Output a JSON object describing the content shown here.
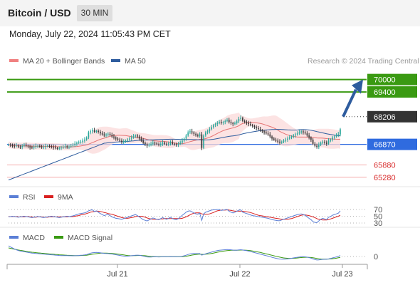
{
  "header": {
    "pair": "Bitcoin / USD",
    "timeframe": "30 MIN"
  },
  "datetime": "Monday, July 22, 2024 11:05:43 PM CET",
  "legend": {
    "ma20": "MA 20 + Bollinger Bands",
    "ma50": "MA 50",
    "rsi": "RSI",
    "rsi_ma": "9MA",
    "macd": "MACD",
    "macd_signal": "MACD Signal"
  },
  "copyright": "Research © 2024 Trading Central",
  "colors": {
    "bull": "#26a69a",
    "bear": "#333333",
    "ma20": "#e57373",
    "ma50": "#2e5c9e",
    "target": "#3a9a12",
    "pivot": "#2f6bdf",
    "support": "#d93030",
    "current": "#333333",
    "rsi": "#5b7fd6",
    "rsi_ma": "#d92020",
    "macd": "#5b7fd6",
    "signal": "#3a9a12"
  },
  "chart_data": {
    "type": "candlestick",
    "x_ticks": [
      "Jul 21",
      "Jul 22",
      "Jul 23"
    ],
    "y_range": [
      65000,
      70400
    ],
    "levels": [
      {
        "label": "70000",
        "value": 70000,
        "kind": "resistance"
      },
      {
        "label": "69400",
        "value": 69400,
        "kind": "resistance"
      },
      {
        "label": "68206",
        "value": 68206,
        "kind": "current"
      },
      {
        "label": "66870",
        "value": 66870,
        "kind": "pivot"
      },
      {
        "label": "65880",
        "value": 65880,
        "kind": "support"
      },
      {
        "label": "65280",
        "value": 65280,
        "kind": "support"
      }
    ],
    "closes": [
      66850,
      66820,
      66800,
      66780,
      66810,
      66760,
      66740,
      66790,
      66830,
      66800,
      66770,
      66720,
      66700,
      66750,
      66790,
      66800,
      66760,
      66730,
      66740,
      66780,
      66800,
      66770,
      66760,
      66720,
      66690,
      66680,
      66700,
      66710,
      66740,
      66780,
      66750,
      66760,
      66800,
      66830,
      66900,
      66950,
      66980,
      67000,
      67050,
      67100,
      67200,
      67450,
      67500,
      67550,
      67480,
      67520,
      67480,
      67400,
      67350,
      67300,
      67350,
      67380,
      67330,
      67250,
      67200,
      67150,
      67100,
      67050,
      66980,
      67000,
      67050,
      67100,
      67150,
      67200,
      67250,
      67300,
      67250,
      67150,
      67050,
      66950,
      66880,
      66800,
      66850,
      66900,
      66950,
      66920,
      66880,
      66850,
      66900,
      66950,
      66900,
      66870,
      66920,
      66960,
      66900,
      66880,
      66850,
      66900,
      66950,
      67050,
      67150,
      67300,
      67450,
      67500,
      67450,
      67380,
      67300,
      67280,
      67350,
      66700,
      67300,
      67450,
      67500,
      67600,
      67700,
      67800,
      67850,
      67900,
      67950,
      67900,
      67950,
      68000,
      68050,
      67950,
      67900,
      67850,
      67900,
      67980,
      68100,
      68150,
      68000,
      67950,
      67900,
      67850,
      67800,
      67750,
      67700,
      67650,
      67600,
      67550,
      67500,
      67450,
      67400,
      67350,
      67250,
      67150,
      67100,
      67050,
      67000,
      66950,
      67000,
      67050,
      67100,
      67150,
      67200,
      67250,
      67300,
      67350,
      67400,
      67450,
      67500,
      67450,
      67400,
      67300,
      67200,
      67100,
      66900,
      66800,
      66750,
      66850,
      66950,
      67000,
      66950,
      66900,
      67050,
      67100,
      67200,
      67250,
      67300,
      67350,
      67600
    ],
    "last_price": 68206,
    "forecast": {
      "from": 68206,
      "to": 70000
    },
    "rsi_levels": [
      70,
      50,
      30
    ],
    "rsi": [
      48,
      49,
      50,
      49,
      48,
      47,
      48,
      49,
      50,
      49,
      48,
      47,
      46,
      47,
      48,
      49,
      48,
      47,
      46,
      47,
      48,
      49,
      50,
      49,
      48,
      47,
      46,
      47,
      48,
      49,
      50,
      49,
      50,
      51,
      53,
      55,
      57,
      58,
      59,
      60,
      62,
      66,
      68,
      69,
      64,
      66,
      62,
      58,
      55,
      52,
      54,
      55,
      52,
      48,
      46,
      44,
      43,
      42,
      41,
      43,
      45,
      47,
      49,
      51,
      53,
      55,
      52,
      48,
      44,
      40,
      38,
      36,
      39,
      42,
      45,
      43,
      41,
      40,
      43,
      46,
      43,
      41,
      44,
      47,
      43,
      41,
      40,
      43,
      47,
      53,
      57,
      62,
      65,
      66,
      63,
      60,
      57,
      56,
      59,
      38,
      57,
      62,
      64,
      66,
      68,
      69,
      69,
      70,
      70,
      67,
      68,
      69,
      70,
      65,
      62,
      60,
      62,
      65,
      68,
      69,
      62,
      60,
      58,
      56,
      54,
      52,
      51,
      50,
      49,
      48,
      47,
      46,
      45,
      44,
      42,
      40,
      39,
      38,
      37,
      37,
      39,
      41,
      43,
      45,
      47,
      49,
      51,
      53,
      55,
      56,
      57,
      55,
      53,
      48,
      44,
      40,
      34,
      32,
      31,
      36,
      41,
      44,
      42,
      40,
      47,
      49,
      53,
      55,
      57,
      59,
      66
    ],
    "rsi_ma": [
      49,
      49,
      49,
      49,
      49,
      48,
      48,
      48,
      48,
      49,
      49,
      48,
      48,
      47,
      47,
      48,
      48,
      48,
      47,
      47,
      47,
      48,
      48,
      48,
      48,
      48,
      48,
      48,
      48,
      48,
      48,
      49,
      49,
      49,
      50,
      51,
      52,
      54,
      55,
      56,
      58,
      60,
      62,
      63,
      64,
      65,
      65,
      64,
      63,
      61,
      60,
      58,
      57,
      56,
      54,
      52,
      50,
      48,
      46,
      45,
      44,
      44,
      45,
      46,
      47,
      49,
      50,
      50,
      50,
      49,
      47,
      45,
      43,
      42,
      41,
      41,
      41,
      41,
      42,
      42,
      43,
      43,
      43,
      43,
      43,
      43,
      43,
      43,
      43,
      44,
      46,
      48,
      51,
      54,
      57,
      59,
      60,
      60,
      60,
      57,
      56,
      56,
      56,
      57,
      59,
      61,
      64,
      66,
      67,
      68,
      68,
      68,
      69,
      68,
      67,
      66,
      65,
      65,
      65,
      65,
      65,
      64,
      63,
      62,
      61,
      59,
      57,
      55,
      53,
      52,
      51,
      50,
      49,
      48,
      47,
      46,
      45,
      44,
      43,
      42,
      41,
      41,
      41,
      41,
      42,
      43,
      45,
      47,
      49,
      51,
      53,
      54,
      54,
      53,
      52,
      50,
      48,
      46,
      43,
      41,
      40,
      39,
      39,
      39,
      40,
      42,
      44,
      46,
      48,
      50,
      53
    ],
    "macd_zero": 0,
    "macd": [
      310,
      280,
      250,
      220,
      195,
      175,
      160,
      150,
      140,
      130,
      120,
      110,
      100,
      95,
      90,
      85,
      80,
      75,
      70,
      65,
      60,
      55,
      50,
      45,
      40,
      35,
      30,
      28,
      26,
      25,
      24,
      23,
      22,
      21,
      22,
      25,
      30,
      35,
      40,
      45,
      55,
      75,
      95,
      110,
      115,
      118,
      115,
      108,
      100,
      92,
      88,
      85,
      80,
      72,
      62,
      52,
      42,
      32,
      20,
      12,
      8,
      10,
      15,
      22,
      30,
      38,
      40,
      35,
      25,
      12,
      0,
      -12,
      -15,
      -14,
      -10,
      -8,
      -10,
      -12,
      -10,
      -6,
      -6,
      -8,
      -6,
      -2,
      -4,
      -6,
      -8,
      -6,
      -2,
      8,
      20,
      38,
      58,
      74,
      84,
      88,
      86,
      84,
      86,
      40,
      60,
      80,
      95,
      110,
      128,
      145,
      160,
      172,
      182,
      188,
      194,
      198,
      202,
      200,
      195,
      188,
      185,
      186,
      192,
      198,
      190,
      180,
      170,
      158,
      145,
      130,
      115,
      100,
      85,
      70,
      55,
      40,
      25,
      10,
      -5,
      -22,
      -38,
      -52,
      -65,
      -75,
      -80,
      -80,
      -76,
      -70,
      -62,
      -52,
      -42,
      -32,
      -22,
      -14,
      -6,
      -6,
      -10,
      -18,
      -32,
      -48,
      -70,
      -90,
      -102,
      -100,
      -92,
      -84,
      -82,
      -82,
      -70,
      -58,
      -42,
      -28,
      -12,
      2,
      30
    ],
    "macd_signal": [
      250,
      240,
      228,
      215,
      202,
      190,
      180,
      170,
      160,
      150,
      142,
      134,
      126,
      119,
      113,
      107,
      102,
      96,
      91,
      86,
      81,
      76,
      71,
      66,
      61,
      56,
      51,
      47,
      43,
      39,
      36,
      33,
      31,
      29,
      28,
      28,
      28,
      29,
      31,
      34,
      38,
      45,
      55,
      66,
      76,
      84,
      91,
      96,
      98,
      98,
      97,
      95,
      92,
      88,
      83,
      77,
      70,
      62,
      54,
      45,
      37,
      30,
      26,
      23,
      24,
      27,
      30,
      32,
      31,
      28,
      22,
      15,
      8,
      3,
      -1,
      -3,
      -5,
      -6,
      -7,
      -7,
      -7,
      -7,
      -6,
      -5,
      -5,
      -5,
      -5,
      -5,
      -4,
      -2,
      2,
      9,
      19,
      30,
      41,
      51,
      59,
      65,
      70,
      64,
      63,
      66,
      72,
      80,
      90,
      101,
      113,
      125,
      136,
      146,
      156,
      164,
      172,
      177,
      181,
      183,
      183,
      184,
      185,
      187,
      187,
      185,
      182,
      177,
      170,
      162,
      152,
      142,
      130,
      118,
      105,
      92,
      78,
      64,
      50,
      36,
      21,
      7,
      -6,
      -19,
      -31,
      -41,
      -48,
      -53,
      -55,
      -55,
      -53,
      -49,
      -44,
      -38,
      -32,
      -27,
      -23,
      -22,
      -24,
      -29,
      -37,
      -48,
      -59,
      -67,
      -72,
      -74,
      -75,
      -76,
      -74,
      -71,
      -65,
      -58,
      -49,
      -38,
      -24
    ]
  }
}
